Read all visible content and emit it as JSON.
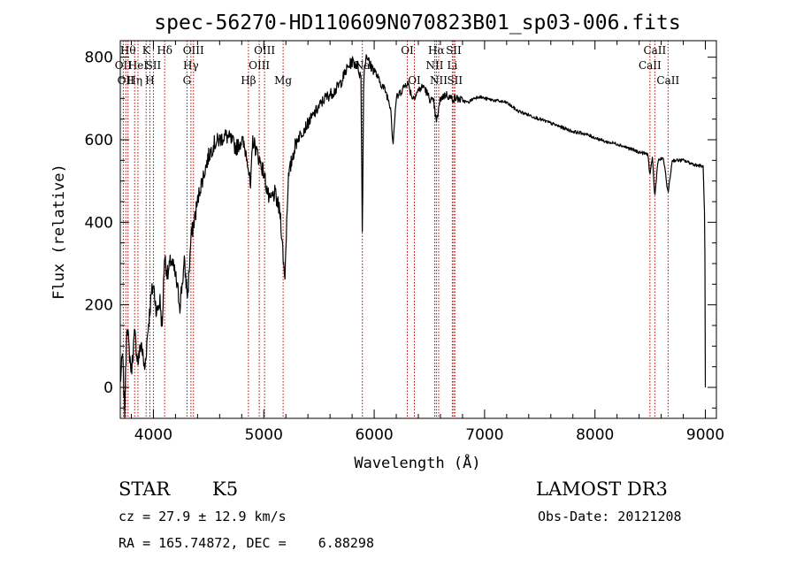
{
  "chart_data": {
    "type": "line",
    "title": "spec-56270-HD110609N070823B01_sp03-006.fits",
    "xlabel": "Wavelength (Å)",
    "ylabel": "Flux (relative)",
    "xlim": [
      3700,
      9100
    ],
    "ylim": [
      -75,
      840
    ],
    "x_ticks": [
      4000,
      5000,
      6000,
      7000,
      8000,
      9000
    ],
    "y_ticks": [
      0,
      200,
      400,
      600,
      800
    ],
    "series": [
      {
        "name": "spectrum",
        "anchors": [
          [
            3700,
            10
          ],
          [
            3720,
            80
          ],
          [
            3740,
            -60
          ],
          [
            3760,
            160
          ],
          [
            3780,
            90
          ],
          [
            3800,
            40
          ],
          [
            3830,
            130
          ],
          [
            3860,
            60
          ],
          [
            3890,
            110
          ],
          [
            3920,
            40
          ],
          [
            3950,
            140
          ],
          [
            3980,
            220
          ],
          [
            4000,
            250
          ],
          [
            4030,
            180
          ],
          [
            4060,
            210
          ],
          [
            4080,
            140
          ],
          [
            4100,
            320
          ],
          [
            4130,
            270
          ],
          [
            4160,
            310
          ],
          [
            4200,
            270
          ],
          [
            4240,
            200
          ],
          [
            4280,
            300
          ],
          [
            4310,
            220
          ],
          [
            4340,
            360
          ],
          [
            4380,
            420
          ],
          [
            4420,
            480
          ],
          [
            4460,
            520
          ],
          [
            4500,
            560
          ],
          [
            4550,
            590
          ],
          [
            4600,
            600
          ],
          [
            4650,
            610
          ],
          [
            4700,
            600
          ],
          [
            4750,
            580
          ],
          [
            4800,
            600
          ],
          [
            4850,
            560
          ],
          [
            4880,
            480
          ],
          [
            4900,
            600
          ],
          [
            4950,
            560
          ],
          [
            5000,
            520
          ],
          [
            5050,
            450
          ],
          [
            5100,
            470
          ],
          [
            5150,
            420
          ],
          [
            5190,
            260
          ],
          [
            5220,
            500
          ],
          [
            5260,
            560
          ],
          [
            5300,
            600
          ],
          [
            5350,
            620
          ],
          [
            5400,
            640
          ],
          [
            5450,
            660
          ],
          [
            5500,
            680
          ],
          [
            5550,
            700
          ],
          [
            5600,
            710
          ],
          [
            5650,
            720
          ],
          [
            5700,
            740
          ],
          [
            5750,
            770
          ],
          [
            5800,
            790
          ],
          [
            5850,
            780
          ],
          [
            5880,
            750
          ],
          [
            5893,
            360
          ],
          [
            5905,
            760
          ],
          [
            5930,
            810
          ],
          [
            5960,
            780
          ],
          [
            6000,
            770
          ],
          [
            6050,
            740
          ],
          [
            6100,
            720
          ],
          [
            6150,
            680
          ],
          [
            6170,
            590
          ],
          [
            6200,
            700
          ],
          [
            6250,
            720
          ],
          [
            6300,
            740
          ],
          [
            6350,
            700
          ],
          [
            6400,
            720
          ],
          [
            6450,
            730
          ],
          [
            6500,
            700
          ],
          [
            6540,
            690
          ],
          [
            6563,
            640
          ],
          [
            6600,
            700
          ],
          [
            6650,
            710
          ],
          [
            6700,
            700
          ],
          [
            6750,
            700
          ],
          [
            6800,
            695
          ],
          [
            6850,
            690
          ],
          [
            6900,
            700
          ],
          [
            6950,
            705
          ],
          [
            7000,
            700
          ],
          [
            7100,
            695
          ],
          [
            7200,
            690
          ],
          [
            7300,
            670
          ],
          [
            7400,
            660
          ],
          [
            7500,
            650
          ],
          [
            7600,
            640
          ],
          [
            7700,
            630
          ],
          [
            7800,
            620
          ],
          [
            7900,
            615
          ],
          [
            8000,
            605
          ],
          [
            8100,
            595
          ],
          [
            8200,
            590
          ],
          [
            8300,
            580
          ],
          [
            8400,
            570
          ],
          [
            8480,
            565
          ],
          [
            8498,
            510
          ],
          [
            8520,
            560
          ],
          [
            8542,
            460
          ],
          [
            8570,
            550
          ],
          [
            8620,
            555
          ],
          [
            8662,
            470
          ],
          [
            8700,
            550
          ],
          [
            8800,
            550
          ],
          [
            8900,
            540
          ],
          [
            8980,
            535
          ],
          [
            8995,
            400
          ],
          [
            9000,
            0
          ]
        ]
      }
    ],
    "spectral_lines": [
      {
        "row": 0,
        "wl": 3770,
        "label": "Hθ"
      },
      {
        "row": 0,
        "wl": 3934,
        "label": "K"
      },
      {
        "row": 0,
        "wl": 4102,
        "label": "Hδ"
      },
      {
        "row": 0,
        "wl": 4363,
        "label": "OIII"
      },
      {
        "row": 0,
        "wl": 5007,
        "label": "OIII"
      },
      {
        "row": 0,
        "wl": 6300,
        "label": "OI"
      },
      {
        "row": 0,
        "wl": 6563,
        "label": "Hα"
      },
      {
        "row": 0,
        "wl": 6720,
        "label": "SII"
      },
      {
        "row": 0,
        "wl": 8542,
        "label": "CaII"
      },
      {
        "row": 1,
        "wl": 3727,
        "label": "OII"
      },
      {
        "row": 1,
        "wl": 3860,
        "label": "HeI"
      },
      {
        "row": 1,
        "wl": 4000,
        "label": "SII"
      },
      {
        "row": 1,
        "wl": 4340,
        "label": "Hγ"
      },
      {
        "row": 1,
        "wl": 4959,
        "label": "OIII"
      },
      {
        "row": 1,
        "wl": 5893,
        "label": "Na"
      },
      {
        "row": 1,
        "wl": 6548,
        "label": "NII"
      },
      {
        "row": 1,
        "wl": 6708,
        "label": "Li"
      },
      {
        "row": 1,
        "wl": 8498,
        "label": "CaII"
      },
      {
        "row": 2,
        "wl": 3750,
        "label": "OII"
      },
      {
        "row": 2,
        "wl": 3830,
        "label": "Hη"
      },
      {
        "row": 2,
        "wl": 3968,
        "label": "H"
      },
      {
        "row": 2,
        "wl": 4304,
        "label": "G"
      },
      {
        "row": 2,
        "wl": 4861,
        "label": "Hβ"
      },
      {
        "row": 2,
        "wl": 5175,
        "label": "Mg"
      },
      {
        "row": 2,
        "wl": 6364,
        "label": "OI"
      },
      {
        "row": 2,
        "wl": 6584,
        "label": "NII"
      },
      {
        "row": 2,
        "wl": 6731,
        "label": "SII"
      },
      {
        "row": 2,
        "wl": 8662,
        "label": "CaII"
      }
    ]
  },
  "info": {
    "object_class": "STAR",
    "subclass": "K5",
    "survey": "LAMOST DR3",
    "cz": "cz = 27.9 ± 12.9 km/s",
    "obs_date": "Obs-Date: 20121208",
    "coords": "RA = 165.74872, DEC =    6.88298"
  }
}
